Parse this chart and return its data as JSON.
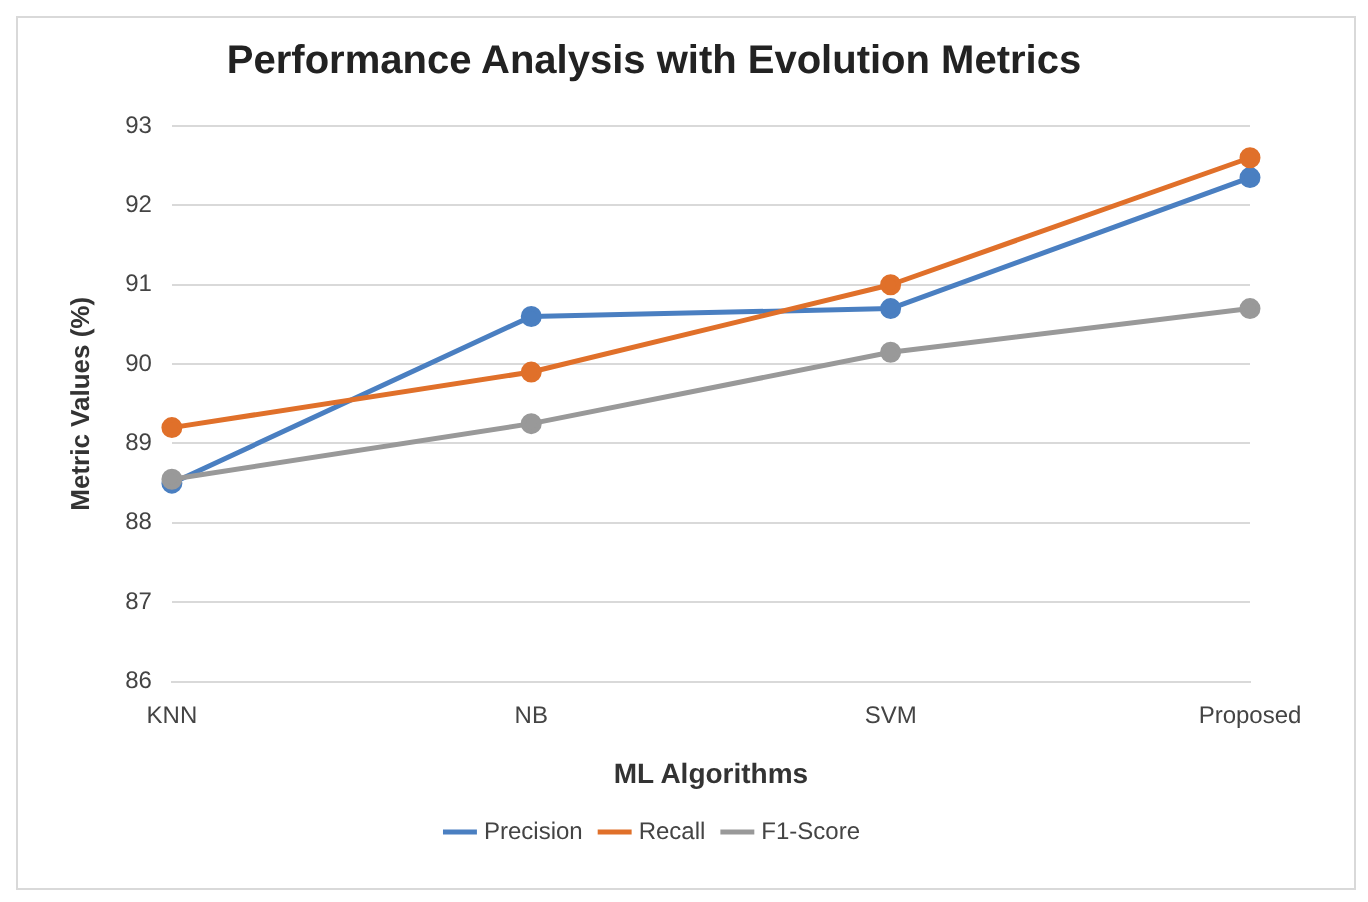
{
  "chart_data": {
    "type": "line",
    "title": "Performance Analysis with Evolution Metrics",
    "xlabel": "ML Algorithms",
    "ylabel": "Metric Values (%)",
    "categories": [
      "KNN",
      "NB",
      "SVM",
      "Proposed"
    ],
    "series": [
      {
        "name": "Precision",
        "color": "#4a7fc1",
        "values": [
          88.5,
          90.6,
          90.7,
          92.35
        ]
      },
      {
        "name": "Recall",
        "color": "#e0702a",
        "values": [
          89.2,
          89.9,
          91.0,
          92.6
        ]
      },
      {
        "name": "F1-Score",
        "color": "#999999",
        "values": [
          88.55,
          89.25,
          90.15,
          90.7
        ]
      }
    ],
    "ylim": [
      86,
      93
    ],
    "yticks": [
      86,
      87,
      88,
      89,
      90,
      91,
      92,
      93
    ],
    "grid": "y",
    "legend": "bottom",
    "marker": "circle",
    "line_style": "solid"
  }
}
